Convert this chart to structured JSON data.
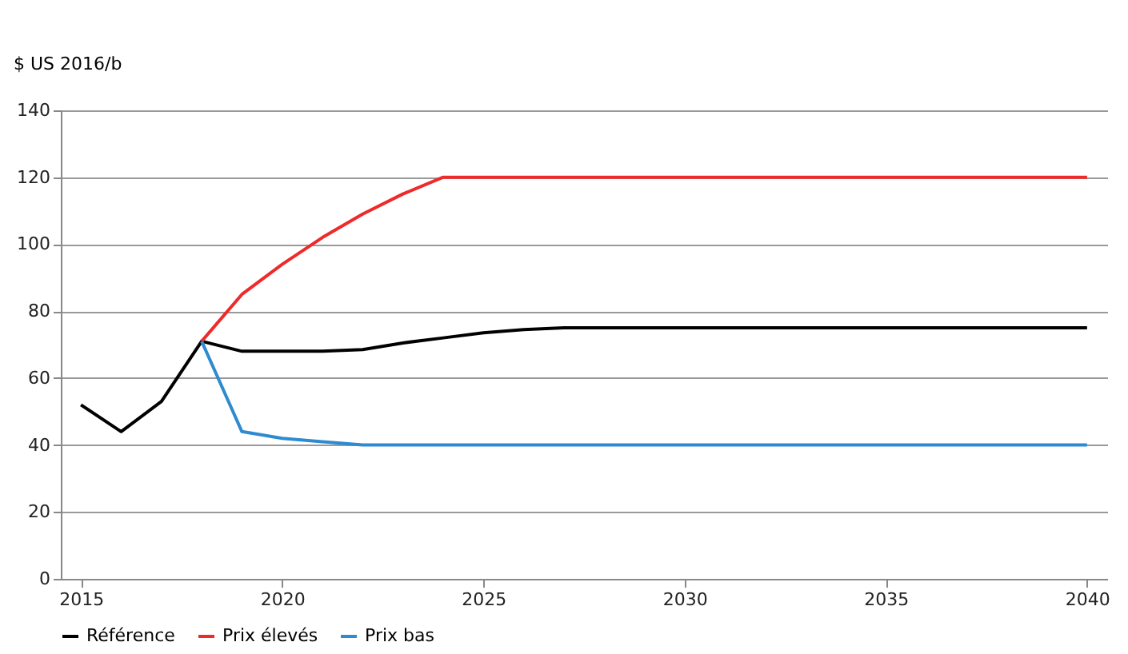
{
  "chart_data": {
    "type": "line",
    "ylabel": "$ US 2016/b",
    "x": [
      2015,
      2016,
      2017,
      2018,
      2019,
      2020,
      2021,
      2022,
      2023,
      2024,
      2025,
      2026,
      2027,
      2028,
      2029,
      2030,
      2031,
      2032,
      2033,
      2034,
      2035,
      2036,
      2037,
      2038,
      2039,
      2040
    ],
    "series": [
      {
        "name": "Référence",
        "color": "#000000",
        "values": [
          52,
          44,
          53,
          71,
          68,
          68,
          68,
          68.5,
          70.5,
          72,
          73.5,
          74.5,
          75,
          75,
          75,
          75,
          75,
          75,
          75,
          75,
          75,
          75,
          75,
          75,
          75,
          75
        ]
      },
      {
        "name": "Prix élevés",
        "color": "#ee2a2a",
        "values": [
          null,
          null,
          null,
          71,
          85,
          94,
          102,
          109,
          115,
          120,
          120,
          120,
          120,
          120,
          120,
          120,
          120,
          120,
          120,
          120,
          120,
          120,
          120,
          120,
          120,
          120
        ]
      },
      {
        "name": "Prix bas",
        "color": "#2e8bd0",
        "values": [
          null,
          null,
          null,
          71,
          44,
          42,
          41,
          40,
          40,
          40,
          40,
          40,
          40,
          40,
          40,
          40,
          40,
          40,
          40,
          40,
          40,
          40,
          40,
          40,
          40,
          40
        ]
      }
    ],
    "xlim": [
      2014.5,
      2040.5
    ],
    "xticks": [
      2015,
      2020,
      2025,
      2030,
      2035,
      2040
    ],
    "ylim": [
      0,
      140
    ],
    "yticks": [
      0,
      20,
      40,
      60,
      80,
      100,
      120,
      140
    ],
    "grid": "y",
    "legend": "bottom",
    "marker": "none",
    "line_style": "solid"
  }
}
